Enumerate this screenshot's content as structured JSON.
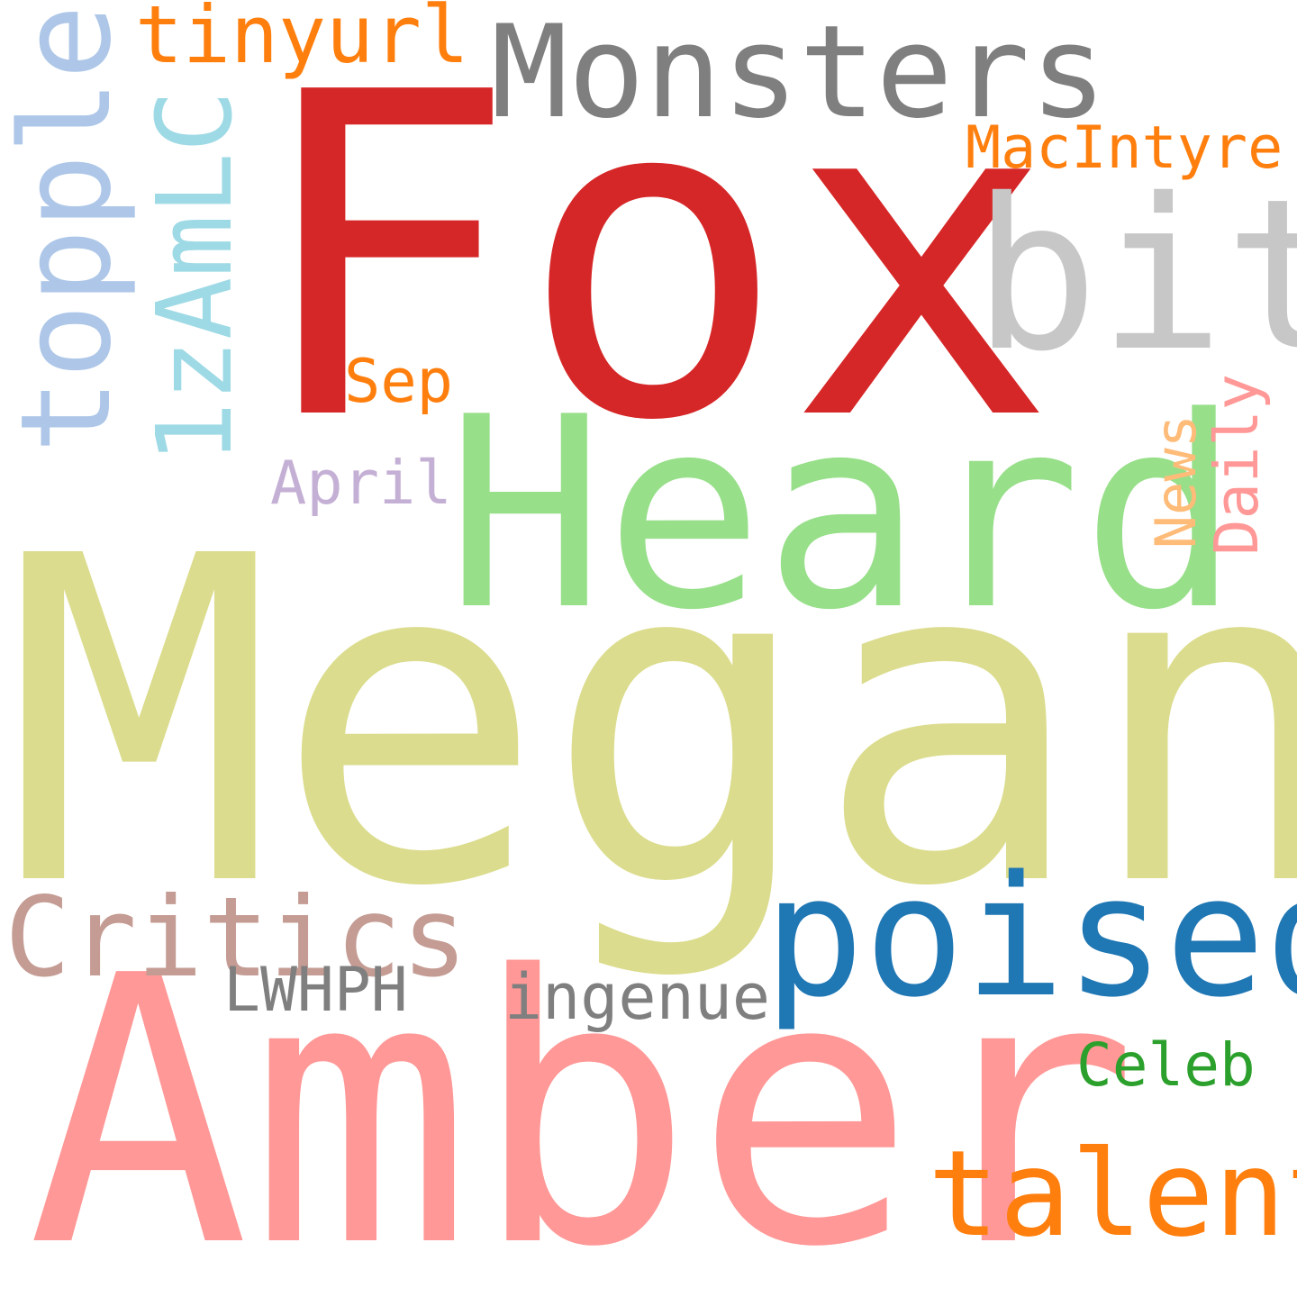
{
  "words": {
    "megan": {
      "text": "Megan",
      "color": "#dbdc8d"
    },
    "amber": {
      "text": "Amber",
      "color": "#ff9896"
    },
    "fox": {
      "text": "Fox",
      "color": "#d62728"
    },
    "heard": {
      "text": "Heard",
      "color": "#98df8a"
    },
    "monsters": {
      "text": "Monsters",
      "color": "#7f7f7f"
    },
    "bit": {
      "text": "bit",
      "color": "#c7c7c7"
    },
    "topple": {
      "text": "topple",
      "color": "#aec7e8"
    },
    "zamlc": {
      "text": "1zAmLC",
      "color": "#9edae5"
    },
    "tinyurl": {
      "text": "tinyurl",
      "color": "#ff7f0e"
    },
    "macintyre": {
      "text": "MacIntyre",
      "color": "#ff7f0e"
    },
    "sep": {
      "text": "Sep",
      "color": "#ff7f0e"
    },
    "april": {
      "text": "April",
      "color": "#c5b0d5"
    },
    "news": {
      "text": "News",
      "color": "#ffbb78"
    },
    "daily": {
      "text": "Daily",
      "color": "#ff9896"
    },
    "critics": {
      "text": "Critics",
      "color": "#c49c94"
    },
    "poised": {
      "text": "poised",
      "color": "#1f77b4"
    },
    "lwhph": {
      "text": "LWHPH",
      "color": "#7f7f7f"
    },
    "ingenue": {
      "text": "ingenue",
      "color": "#7f7f7f"
    },
    "celeb": {
      "text": "Celeb",
      "color": "#2ca02c"
    },
    "talent": {
      "text": "talent",
      "color": "#ff7f0e"
    }
  }
}
